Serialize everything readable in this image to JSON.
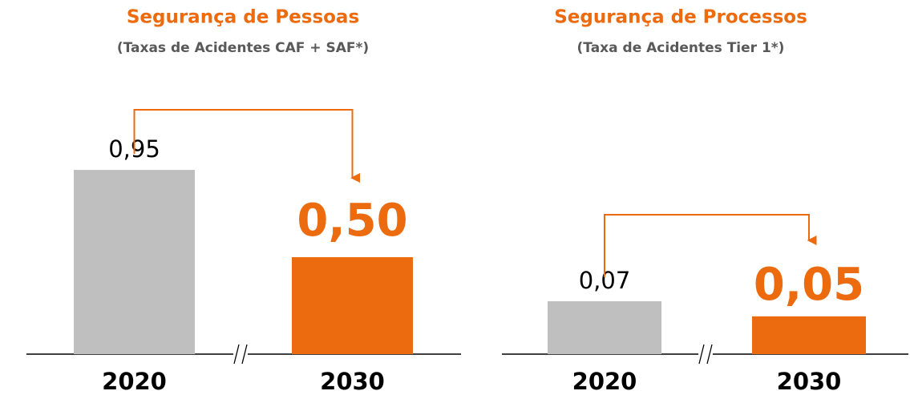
{
  "chart_data": [
    {
      "type": "bar",
      "title": "Segurança de Pessoas",
      "subtitle": "(Taxas de Acidentes CAF + SAF*)",
      "categories": [
        "2020",
        "2030"
      ],
      "values": [
        0.95,
        0.5
      ],
      "value_labels": [
        "0,95",
        "0,50"
      ],
      "colors": [
        "#bfbfbf",
        "#ed6b0f"
      ]
    },
    {
      "type": "bar",
      "title": "Segurança de Processos",
      "subtitle": "(Taxa de Acidentes Tier 1*)",
      "categories": [
        "2020",
        "2030"
      ],
      "values": [
        0.07,
        0.05
      ],
      "value_labels": [
        "0,07",
        "0,05"
      ],
      "colors": [
        "#bfbfbf",
        "#ed6b0f"
      ]
    }
  ]
}
